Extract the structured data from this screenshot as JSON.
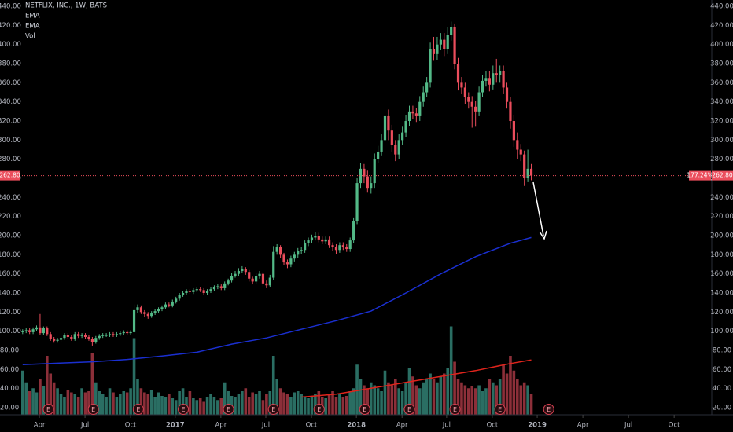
{
  "chart_data": {
    "type": "candlestick",
    "title": "NETFLIX, INC., 1W, BATS",
    "indicators": [
      "EMA",
      "EMA",
      "Vol"
    ],
    "candles": [
      [
        99,
        102,
        97,
        100
      ],
      [
        100,
        103,
        98,
        101
      ],
      [
        101,
        103,
        97,
        99
      ],
      [
        99,
        104,
        97,
        102
      ],
      [
        102,
        106,
        100,
        104
      ],
      [
        104,
        118,
        96,
        98
      ],
      [
        98,
        105,
        96,
        103
      ],
      [
        103,
        105,
        95,
        97
      ],
      [
        97,
        99,
        90,
        92
      ],
      [
        92,
        94,
        88,
        90
      ],
      [
        90,
        93,
        88,
        91
      ],
      [
        91,
        95,
        89,
        93
      ],
      [
        93,
        98,
        91,
        96
      ],
      [
        96,
        98,
        92,
        94
      ],
      [
        94,
        96,
        90,
        92
      ],
      [
        92,
        99,
        90,
        97
      ],
      [
        97,
        99,
        93,
        95
      ],
      [
        95,
        98,
        93,
        96
      ],
      [
        96,
        98,
        92,
        94
      ],
      [
        94,
        96,
        90,
        92
      ],
      [
        92,
        94,
        85,
        89
      ],
      [
        89,
        95,
        87,
        93
      ],
      [
        93,
        97,
        91,
        95
      ],
      [
        95,
        98,
        93,
        96
      ],
      [
        96,
        98,
        94,
        96
      ],
      [
        96,
        99,
        94,
        97
      ],
      [
        97,
        99,
        94,
        96
      ],
      [
        96,
        99,
        94,
        97
      ],
      [
        97,
        100,
        95,
        98
      ],
      [
        98,
        101,
        96,
        99
      ],
      [
        99,
        101,
        96,
        98
      ],
      [
        98,
        101,
        96,
        99
      ],
      [
        99,
        128,
        98,
        122
      ],
      [
        122,
        128,
        119,
        125
      ],
      [
        125,
        127,
        118,
        120
      ],
      [
        120,
        122,
        115,
        118
      ],
      [
        118,
        120,
        113,
        116
      ],
      [
        116,
        121,
        114,
        119
      ],
      [
        119,
        123,
        117,
        121
      ],
      [
        121,
        125,
        119,
        123
      ],
      [
        123,
        127,
        121,
        125
      ],
      [
        125,
        130,
        123,
        128
      ],
      [
        128,
        130,
        125,
        127
      ],
      [
        127,
        133,
        125,
        131
      ],
      [
        131,
        136,
        129,
        134
      ],
      [
        134,
        140,
        132,
        138
      ],
      [
        138,
        142,
        136,
        140
      ],
      [
        140,
        144,
        138,
        142
      ],
      [
        142,
        144,
        139,
        141
      ],
      [
        141,
        145,
        139,
        143
      ],
      [
        143,
        146,
        141,
        144
      ],
      [
        144,
        146,
        141,
        143
      ],
      [
        143,
        145,
        138,
        140
      ],
      [
        140,
        144,
        138,
        142
      ],
      [
        142,
        146,
        140,
        144
      ],
      [
        144,
        148,
        142,
        146
      ],
      [
        146,
        149,
        144,
        147
      ],
      [
        147,
        149,
        143,
        145
      ],
      [
        145,
        152,
        143,
        150
      ],
      [
        150,
        155,
        148,
        153
      ],
      [
        153,
        161,
        151,
        158
      ],
      [
        158,
        163,
        156,
        160
      ],
      [
        160,
        166,
        158,
        163
      ],
      [
        163,
        168,
        161,
        165
      ],
      [
        165,
        167,
        159,
        162
      ],
      [
        162,
        164,
        152,
        155
      ],
      [
        155,
        157,
        149,
        152
      ],
      [
        152,
        161,
        150,
        158
      ],
      [
        158,
        163,
        155,
        160
      ],
      [
        160,
        162,
        147,
        150
      ],
      [
        150,
        153,
        145,
        148
      ],
      [
        148,
        159,
        146,
        156
      ],
      [
        156,
        189,
        154,
        183
      ],
      [
        183,
        191,
        180,
        188
      ],
      [
        188,
        190,
        177,
        180
      ],
      [
        180,
        182,
        169,
        172
      ],
      [
        172,
        175,
        166,
        170
      ],
      [
        170,
        179,
        167,
        176
      ],
      [
        176,
        183,
        173,
        180
      ],
      [
        180,
        187,
        177,
        184
      ],
      [
        184,
        188,
        181,
        185
      ],
      [
        185,
        195,
        182,
        192
      ],
      [
        192,
        198,
        189,
        195
      ],
      [
        195,
        201,
        192,
        198
      ],
      [
        198,
        204,
        195,
        200
      ],
      [
        200,
        203,
        193,
        196
      ],
      [
        196,
        199,
        191,
        194
      ],
      [
        194,
        199,
        191,
        196
      ],
      [
        196,
        199,
        187,
        190
      ],
      [
        190,
        193,
        184,
        188
      ],
      [
        188,
        191,
        181,
        185
      ],
      [
        185,
        193,
        182,
        190
      ],
      [
        190,
        193,
        185,
        188
      ],
      [
        188,
        191,
        183,
        186
      ],
      [
        186,
        198,
        183,
        195
      ],
      [
        195,
        219,
        192,
        215
      ],
      [
        215,
        260,
        212,
        255
      ],
      [
        255,
        276,
        250,
        270
      ],
      [
        270,
        275,
        255,
        262
      ],
      [
        262,
        268,
        245,
        250
      ],
      [
        250,
        262,
        244,
        255
      ],
      [
        255,
        286,
        250,
        280
      ],
      [
        280,
        294,
        276,
        288
      ],
      [
        288,
        306,
        284,
        300
      ],
      [
        300,
        333,
        296,
        325
      ],
      [
        325,
        332,
        300,
        310
      ],
      [
        310,
        316,
        288,
        295
      ],
      [
        295,
        300,
        278,
        285
      ],
      [
        285,
        306,
        280,
        300
      ],
      [
        300,
        314,
        295,
        308
      ],
      [
        308,
        326,
        303,
        320
      ],
      [
        320,
        336,
        315,
        330
      ],
      [
        330,
        336,
        322,
        328
      ],
      [
        328,
        334,
        319,
        325
      ],
      [
        325,
        346,
        320,
        340
      ],
      [
        340,
        356,
        335,
        350
      ],
      [
        350,
        366,
        345,
        360
      ],
      [
        360,
        402,
        355,
        395
      ],
      [
        395,
        408,
        383,
        390
      ],
      [
        390,
        408,
        384,
        400
      ],
      [
        400,
        412,
        394,
        405
      ],
      [
        405,
        412,
        388,
        395
      ],
      [
        395,
        418,
        390,
        410
      ],
      [
        410,
        424,
        404,
        418
      ],
      [
        418,
        422,
        374,
        380
      ],
      [
        380,
        386,
        352,
        360
      ],
      [
        360,
        366,
        348,
        355
      ],
      [
        355,
        360,
        338,
        345
      ],
      [
        345,
        350,
        333,
        340
      ],
      [
        340,
        346,
        313,
        335
      ],
      [
        335,
        341,
        314,
        330
      ],
      [
        330,
        356,
        325,
        350
      ],
      [
        350,
        368,
        345,
        362
      ],
      [
        362,
        372,
        356,
        365
      ],
      [
        365,
        372,
        351,
        358
      ],
      [
        358,
        378,
        353,
        370
      ],
      [
        370,
        385,
        360,
        368
      ],
      [
        368,
        378,
        360,
        372
      ],
      [
        372,
        378,
        348,
        355
      ],
      [
        355,
        360,
        333,
        340
      ],
      [
        340,
        345,
        312,
        320
      ],
      [
        320,
        326,
        293,
        300
      ],
      [
        300,
        308,
        280,
        290
      ],
      [
        290,
        296,
        278,
        285
      ],
      [
        285,
        289,
        252,
        260
      ],
      [
        260,
        290,
        256,
        270
      ],
      [
        270,
        275,
        258,
        262.8
      ]
    ],
    "volume": [
      75,
      55,
      40,
      45,
      38,
      60,
      48,
      100,
      70,
      55,
      45,
      35,
      30,
      42,
      38,
      35,
      30,
      45,
      38,
      40,
      105,
      55,
      40,
      35,
      30,
      45,
      38,
      30,
      35,
      40,
      38,
      45,
      130,
      60,
      45,
      38,
      35,
      42,
      30,
      38,
      32,
      30,
      35,
      28,
      25,
      40,
      45,
      30,
      40,
      28,
      25,
      28,
      22,
      30,
      35,
      30,
      25,
      28,
      55,
      40,
      32,
      30,
      35,
      40,
      45,
      30,
      38,
      35,
      40,
      25,
      35,
      40,
      100,
      60,
      45,
      38,
      35,
      30,
      38,
      40,
      35,
      30,
      28,
      32,
      35,
      40,
      30,
      28,
      35,
      40,
      30,
      35,
      30,
      32,
      40,
      45,
      85,
      60,
      50,
      45,
      55,
      50,
      45,
      40,
      75,
      55,
      50,
      60,
      45,
      40,
      55,
      80,
      65,
      50,
      45,
      55,
      60,
      70,
      60,
      55,
      65,
      70,
      80,
      150,
      90,
      60,
      55,
      50,
      45,
      48,
      45,
      50,
      40,
      45,
      60,
      55,
      50,
      60,
      85,
      70,
      100,
      75,
      60,
      50,
      55,
      50,
      35
    ],
    "ema": {
      "x": [
        0,
        10,
        20,
        30,
        40,
        50,
        60,
        70,
        80,
        90,
        100,
        110,
        120,
        130,
        140,
        146
      ],
      "values": [
        65,
        66.5,
        68,
        70.5,
        74,
        78,
        86.5,
        93,
        102,
        111,
        121,
        140,
        160,
        178,
        192,
        198
      ],
      "color": "#1a2fd0"
    },
    "volume_ma": {
      "x": [
        80,
        90,
        100,
        110,
        120,
        130,
        140,
        146
      ],
      "values": [
        30,
        35,
        45,
        55,
        65,
        75,
        87,
        93
      ],
      "color": "#e0241c"
    },
    "up_color": "#53b987",
    "down_color": "#eb4d5c",
    "volume_up_color": "#2a6e63",
    "volume_down_color": "#8c2f39",
    "last_price": {
      "value": 262.8,
      "label": "262.80"
    },
    "change": {
      "value": 177.24,
      "label": "177.24%"
    },
    "earnings": {
      "label": "E",
      "x": [
        7.4,
        20.3,
        33.2,
        46.1,
        59.1,
        72,
        85.1,
        98.2,
        111,
        124.1,
        137,
        151
      ]
    },
    "xlim": [
      -6.5,
      197.8
    ],
    "xticks": [
      {
        "value": 4.8,
        "label": "Apr"
      },
      {
        "value": 17.9,
        "label": "Jul"
      },
      {
        "value": 31.0,
        "label": "Oct"
      },
      {
        "value": 43.8,
        "label": "2017"
      },
      {
        "value": 56.9,
        "label": "Apr"
      },
      {
        "value": 69.8,
        "label": "Jul"
      },
      {
        "value": 82.9,
        "label": "Oct"
      },
      {
        "value": 95.8,
        "label": "2018"
      },
      {
        "value": 108.9,
        "label": "Apr"
      },
      {
        "value": 121.7,
        "label": "Jul"
      },
      {
        "value": 134.8,
        "label": "Oct"
      },
      {
        "value": 147.7,
        "label": "2019"
      },
      {
        "value": 160.8,
        "label": "Apr"
      },
      {
        "value": 173.9,
        "label": "Jul"
      },
      {
        "value": 187.0,
        "label": "Oct"
      }
    ],
    "ylim": [
      12.6,
      446.6
    ],
    "yticks": [
      {
        "value": 20,
        "label": "20.00"
      },
      {
        "value": 40,
        "label": "40.00"
      },
      {
        "value": 60,
        "label": "60.00"
      },
      {
        "value": 80,
        "label": "80.00"
      },
      {
        "value": 100,
        "label": "100.00"
      },
      {
        "value": 120,
        "label": "120.00"
      },
      {
        "value": 140,
        "label": "140.00"
      },
      {
        "value": 160,
        "label": "160.00"
      },
      {
        "value": 180,
        "label": "180.00"
      },
      {
        "value": 200,
        "label": "200.00"
      },
      {
        "value": 220,
        "label": "220.00"
      },
      {
        "value": 240,
        "label": "240.00"
      },
      {
        "value": 260,
        "label": "260.00"
      },
      {
        "value": 280,
        "label": "280.00"
      },
      {
        "value": 300,
        "label": "300.00"
      },
      {
        "value": 320,
        "label": "320.00"
      },
      {
        "value": 340,
        "label": "340.00"
      },
      {
        "value": 360,
        "label": "360.00"
      },
      {
        "value": 380,
        "label": "380.00"
      },
      {
        "value": 400,
        "label": "400.00"
      },
      {
        "value": 420,
        "label": "420.00"
      },
      {
        "value": 440,
        "label": "440.00"
      }
    ]
  }
}
